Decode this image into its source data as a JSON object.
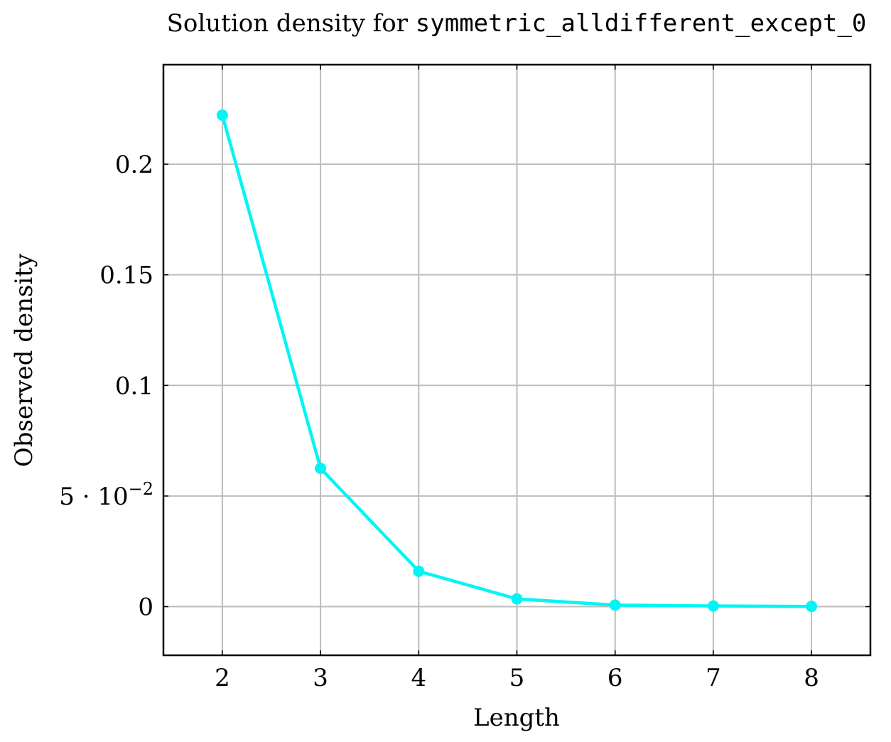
{
  "chart_data": {
    "type": "line",
    "title_prefix": "Solution density for ",
    "title_code": "symmetric_alldifferent_except_0",
    "xlabel": "Length",
    "ylabel": "Observed density",
    "x": [
      2,
      3,
      4,
      5,
      6,
      7,
      8
    ],
    "series": [
      {
        "values": [
          0.2222,
          0.0625,
          0.016,
          0.0035,
          0.0007,
          0.0003,
          0.0001
        ]
      }
    ],
    "xlim": [
      1.4,
      8.6
    ],
    "ylim": [
      -0.022,
      0.245
    ],
    "x_ticks": [
      {
        "value": 2,
        "label": "2"
      },
      {
        "value": 3,
        "label": "3"
      },
      {
        "value": 4,
        "label": "4"
      },
      {
        "value": 5,
        "label": "5"
      },
      {
        "value": 6,
        "label": "6"
      },
      {
        "value": 7,
        "label": "7"
      },
      {
        "value": 8,
        "label": "8"
      }
    ],
    "y_ticks": [
      {
        "value": 0,
        "label": "0"
      },
      {
        "value": 0.05,
        "label": "5 · 10",
        "sup": "−2"
      },
      {
        "value": 0.1,
        "label": "0.1"
      },
      {
        "value": 0.15,
        "label": "0.15"
      },
      {
        "value": 0.2,
        "label": "0.2"
      }
    ],
    "grid": true,
    "colors": {
      "line": "#00f5f5",
      "grid": "#bdbdbd",
      "axis": "#000000"
    }
  }
}
